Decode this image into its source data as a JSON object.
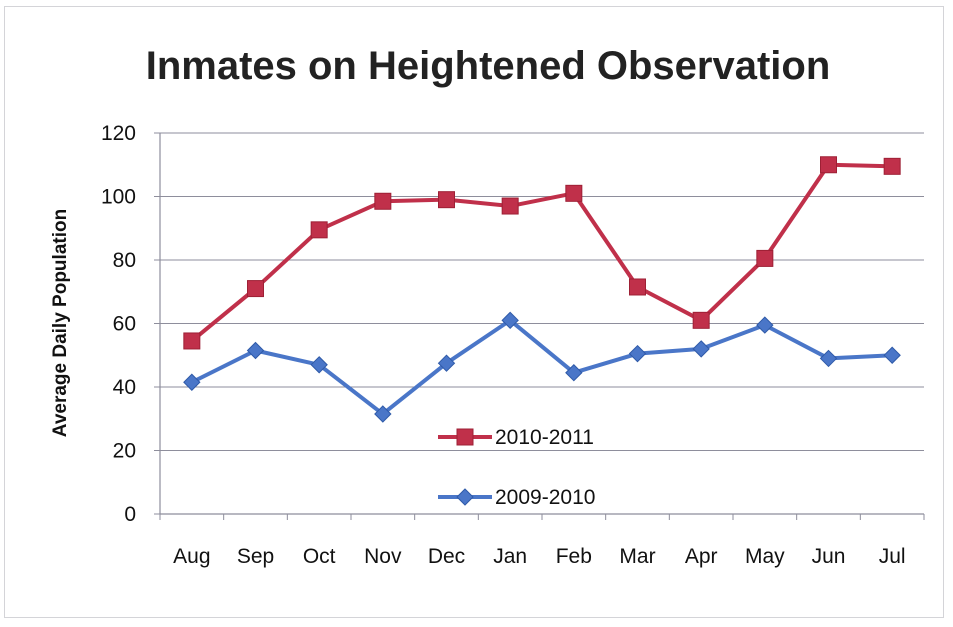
{
  "chart_data": {
    "type": "line",
    "title": "Inmates on Heightened Observation",
    "xlabel": "",
    "ylabel": "Average Daily Population",
    "categories": [
      "Aug",
      "Sep",
      "Oct",
      "Nov",
      "Dec",
      "Jan",
      "Feb",
      "Mar",
      "Apr",
      "May",
      "Jun",
      "Jul"
    ],
    "ylim": [
      0,
      120
    ],
    "yticks": [
      "0",
      "20",
      "40",
      "60",
      "80",
      "100",
      "120"
    ],
    "grid": true,
    "legend_position": "center-bottom",
    "series": [
      {
        "name": "2010-2011",
        "color": "#c0304a",
        "marker": "square",
        "values": [
          54.5,
          71,
          89.5,
          98.5,
          99,
          97,
          101,
          71.5,
          61,
          80.5,
          110,
          109.5
        ]
      },
      {
        "name": "2009-2010",
        "color": "#4a76c8",
        "marker": "diamond",
        "values": [
          41.5,
          51.5,
          47,
          31.5,
          47.5,
          61,
          44.5,
          50.5,
          52,
          59.5,
          49,
          50
        ]
      }
    ]
  }
}
